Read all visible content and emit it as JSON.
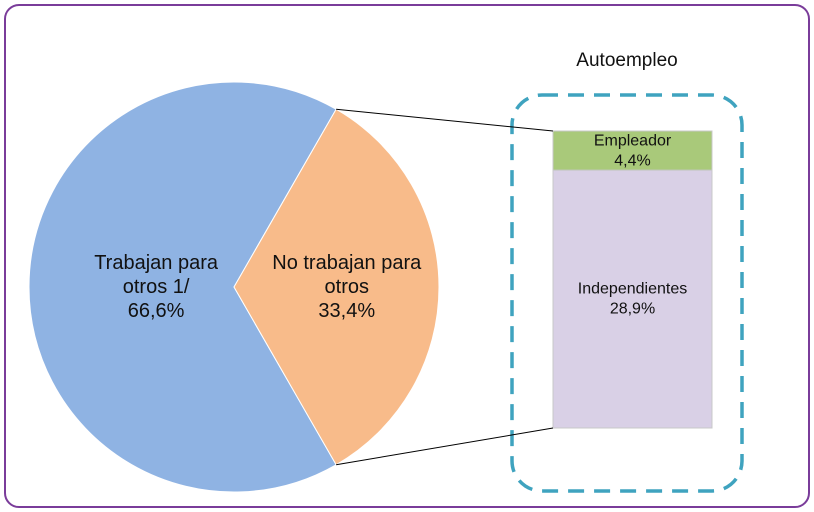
{
  "chart_data": {
    "type": "bar-of-pie",
    "categories": [
      "Trabajan para otros 1/",
      "No trabajan para otros"
    ],
    "values": [
      66.6,
      33.4
    ],
    "value_labels": [
      "66,6%",
      "33,4%"
    ],
    "colors": [
      "#8fb3e3",
      "#f8bb8a"
    ],
    "breakdown": {
      "title": "Autoempleo",
      "categories": [
        "Empleador",
        "Independientes"
      ],
      "values": [
        4.4,
        28.9
      ],
      "value_labels": [
        "4,4%",
        "28,9%"
      ],
      "colors": [
        "#a9c97a",
        "#d9d0e6"
      ]
    }
  }
}
